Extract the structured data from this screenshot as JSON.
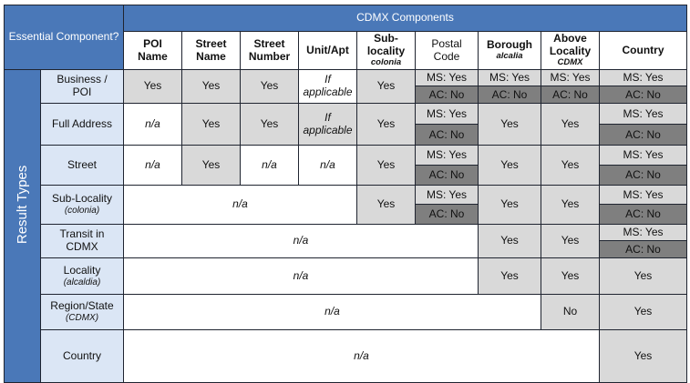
{
  "corner_label": "Essential Component?",
  "band_title": "CDMX Components",
  "side_label": "Result Types",
  "columns": {
    "poi": {
      "line1": "POI",
      "line2": "Name"
    },
    "street_name": {
      "line1": "Street",
      "line2": "Name"
    },
    "street_number": {
      "line1": "Street",
      "line2": "Number"
    },
    "unit": {
      "line1": "Unit/Apt"
    },
    "sublocality": {
      "line1": "Sub-",
      "line2": "locality",
      "sub": "colonia"
    },
    "postal": {
      "line1": "Postal",
      "line2": "Code"
    },
    "borough": {
      "line1": "Borough",
      "sub": "alcalia"
    },
    "above": {
      "line1": "Above",
      "line2": "Locality",
      "sub": "CDMX"
    },
    "country": {
      "line1": "Country"
    }
  },
  "rows": {
    "business_poi": {
      "label1": "Business /",
      "label2": "POI"
    },
    "full_address": {
      "label1": "Full Address"
    },
    "street": {
      "label1": "Street"
    },
    "sub_locality": {
      "label1": "Sub-Locality",
      "sub": "(colonia)"
    },
    "transit": {
      "label1": "Transit in",
      "label2": "CDMX"
    },
    "locality": {
      "label1": "Locality",
      "sub": "(alcaldia)"
    },
    "region": {
      "label1": "Region/State",
      "sub": "(CDMX)"
    },
    "country": {
      "label1": "Country"
    }
  },
  "values": {
    "yes": "Yes",
    "no": "No",
    "na": "n/a",
    "if_line1": "If",
    "if_line2": "applicable",
    "ms_yes": "MS: Yes",
    "ac_no": "AC: No"
  },
  "colors": {
    "header_blue": "#4a78b8",
    "row_label_blue": "#dbe6f5",
    "gray": "#d9d9d9",
    "dark_gray": "#7f7f7f"
  }
}
